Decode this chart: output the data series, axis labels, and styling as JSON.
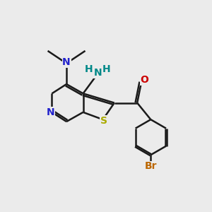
{
  "background_color": "#ebebeb",
  "bond_color": "#1a1a1a",
  "atom_colors": {
    "N": "#2222cc",
    "S": "#aaaa00",
    "O": "#cc0000",
    "Br": "#bb6600",
    "NH2": "#008888",
    "C": "#1a1a1a"
  },
  "lw": 1.8,
  "fs": 10,
  "fs_small": 9
}
